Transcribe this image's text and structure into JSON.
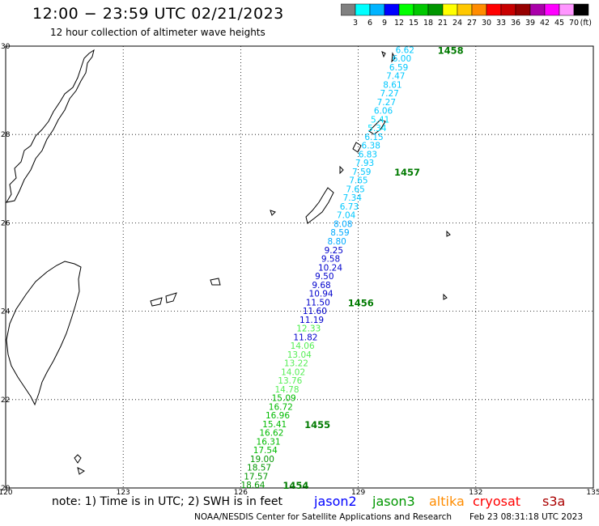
{
  "header": {
    "title": "12:00 − 23:59 UTC 02/21/2023",
    "subtitle": "12 hour collection of altimeter wave heights"
  },
  "colorbar": {
    "unit": "(ft)",
    "colors": [
      "#808080",
      "#00ffff",
      "#00b4ff",
      "#0000ff",
      "#00ff00",
      "#00c800",
      "#009600",
      "#ffff00",
      "#ffc800",
      "#ff8c00",
      "#ff0000",
      "#c80000",
      "#960000",
      "#aa00aa",
      "#ff00ff",
      "#ff96ff",
      "#000000"
    ],
    "labels": [
      "3",
      "6",
      "9",
      "12",
      "15",
      "18",
      "21",
      "24",
      "27",
      "30",
      "33",
      "36",
      "39",
      "42",
      "45",
      "70"
    ]
  },
  "axes": {
    "lat_labels": [
      "30",
      "28",
      "26",
      "24",
      "22",
      "20"
    ],
    "lon_labels": [
      "120",
      "123",
      "126",
      "129",
      "132",
      "135"
    ]
  },
  "chart_data": {
    "type": "map",
    "xlim": [
      120,
      135
    ],
    "ylim": [
      20,
      30
    ],
    "grid": true,
    "points": [
      {
        "v": "6.62",
        "c": "#00c8ff"
      },
      {
        "v": "6.00",
        "c": "#00c8ff"
      },
      {
        "v": "6.59",
        "c": "#00c8ff"
      },
      {
        "v": "7.47",
        "c": "#00c8ff"
      },
      {
        "v": "8.61",
        "c": "#00c8ff"
      },
      {
        "v": "7.27",
        "c": "#00c8ff"
      },
      {
        "v": "7.27",
        "c": "#00c8ff"
      },
      {
        "v": "6.06",
        "c": "#00c8ff"
      },
      {
        "v": "5.41",
        "c": "#00e0ff"
      },
      {
        "v": "5.34",
        "c": "#00e0ff"
      },
      {
        "v": "6.15",
        "c": "#00c8ff"
      },
      {
        "v": "6.38",
        "c": "#00c8ff"
      },
      {
        "v": "6.83",
        "c": "#00c8ff"
      },
      {
        "v": "7.93",
        "c": "#00c8ff"
      },
      {
        "v": "7.59",
        "c": "#00c8ff"
      },
      {
        "v": "7.65",
        "c": "#00c8ff"
      },
      {
        "v": "7.65",
        "c": "#00c8ff"
      },
      {
        "v": "7.34",
        "c": "#00c8ff"
      },
      {
        "v": "6.73",
        "c": "#00c8ff"
      },
      {
        "v": "7.04",
        "c": "#00c8ff"
      },
      {
        "v": "8.08",
        "c": "#00aaff"
      },
      {
        "v": "8.59",
        "c": "#00aaff"
      },
      {
        "v": "8.80",
        "c": "#00aaff"
      },
      {
        "v": "9.25",
        "c": "#0000cc"
      },
      {
        "v": "9.58",
        "c": "#0000cc"
      },
      {
        "v": "10.24",
        "c": "#0000cc"
      },
      {
        "v": "9.50",
        "c": "#0000cc"
      },
      {
        "v": "9.68",
        "c": "#0000cc"
      },
      {
        "v": "10.94",
        "c": "#0000cc"
      },
      {
        "v": "11.50",
        "c": "#0000cc"
      },
      {
        "v": "11.60",
        "c": "#0000cc"
      },
      {
        "v": "11.19",
        "c": "#0000cc"
      },
      {
        "v": "12.33",
        "c": "#44ee44"
      },
      {
        "v": "11.82",
        "c": "#0000cc"
      },
      {
        "v": "14.06",
        "c": "#55ee55"
      },
      {
        "v": "13.04",
        "c": "#55ee55"
      },
      {
        "v": "13.22",
        "c": "#55ee55"
      },
      {
        "v": "14.02",
        "c": "#55ee55"
      },
      {
        "v": "13.76",
        "c": "#55ee55"
      },
      {
        "v": "14.78",
        "c": "#55ee55"
      },
      {
        "v": "15.09",
        "c": "#00bb00"
      },
      {
        "v": "16.72",
        "c": "#00bb00"
      },
      {
        "v": "16.96",
        "c": "#00bb00"
      },
      {
        "v": "15.41",
        "c": "#00bb00"
      },
      {
        "v": "16.62",
        "c": "#00bb00"
      },
      {
        "v": "16.31",
        "c": "#00bb00"
      },
      {
        "v": "17.54",
        "c": "#00bb00"
      },
      {
        "v": "19.00",
        "c": "#009600"
      },
      {
        "v": "18.57",
        "c": "#009600"
      },
      {
        "v": "17.57",
        "c": "#009600"
      },
      {
        "v": "18.64",
        "c": "#009600"
      }
    ],
    "time_labels": [
      "1458",
      "1457",
      "1456",
      "1455",
      "1454"
    ]
  },
  "footer": {
    "note": "note: 1) Time is in UTC; 2) SWH is in feet",
    "satellites": [
      {
        "name": "jason2",
        "color": "#0000ff"
      },
      {
        "name": "jason3",
        "color": "#009600"
      },
      {
        "name": "altika",
        "color": "#ff8c00"
      },
      {
        "name": "cryosat",
        "color": "#ff0000"
      },
      {
        "name": "s3a",
        "color": "#aa0000"
      }
    ],
    "credit": "NOAA/NESDIS Center for Satellite Applications and Research",
    "issued": "Feb 23 08:31:18 UTC 2023"
  }
}
